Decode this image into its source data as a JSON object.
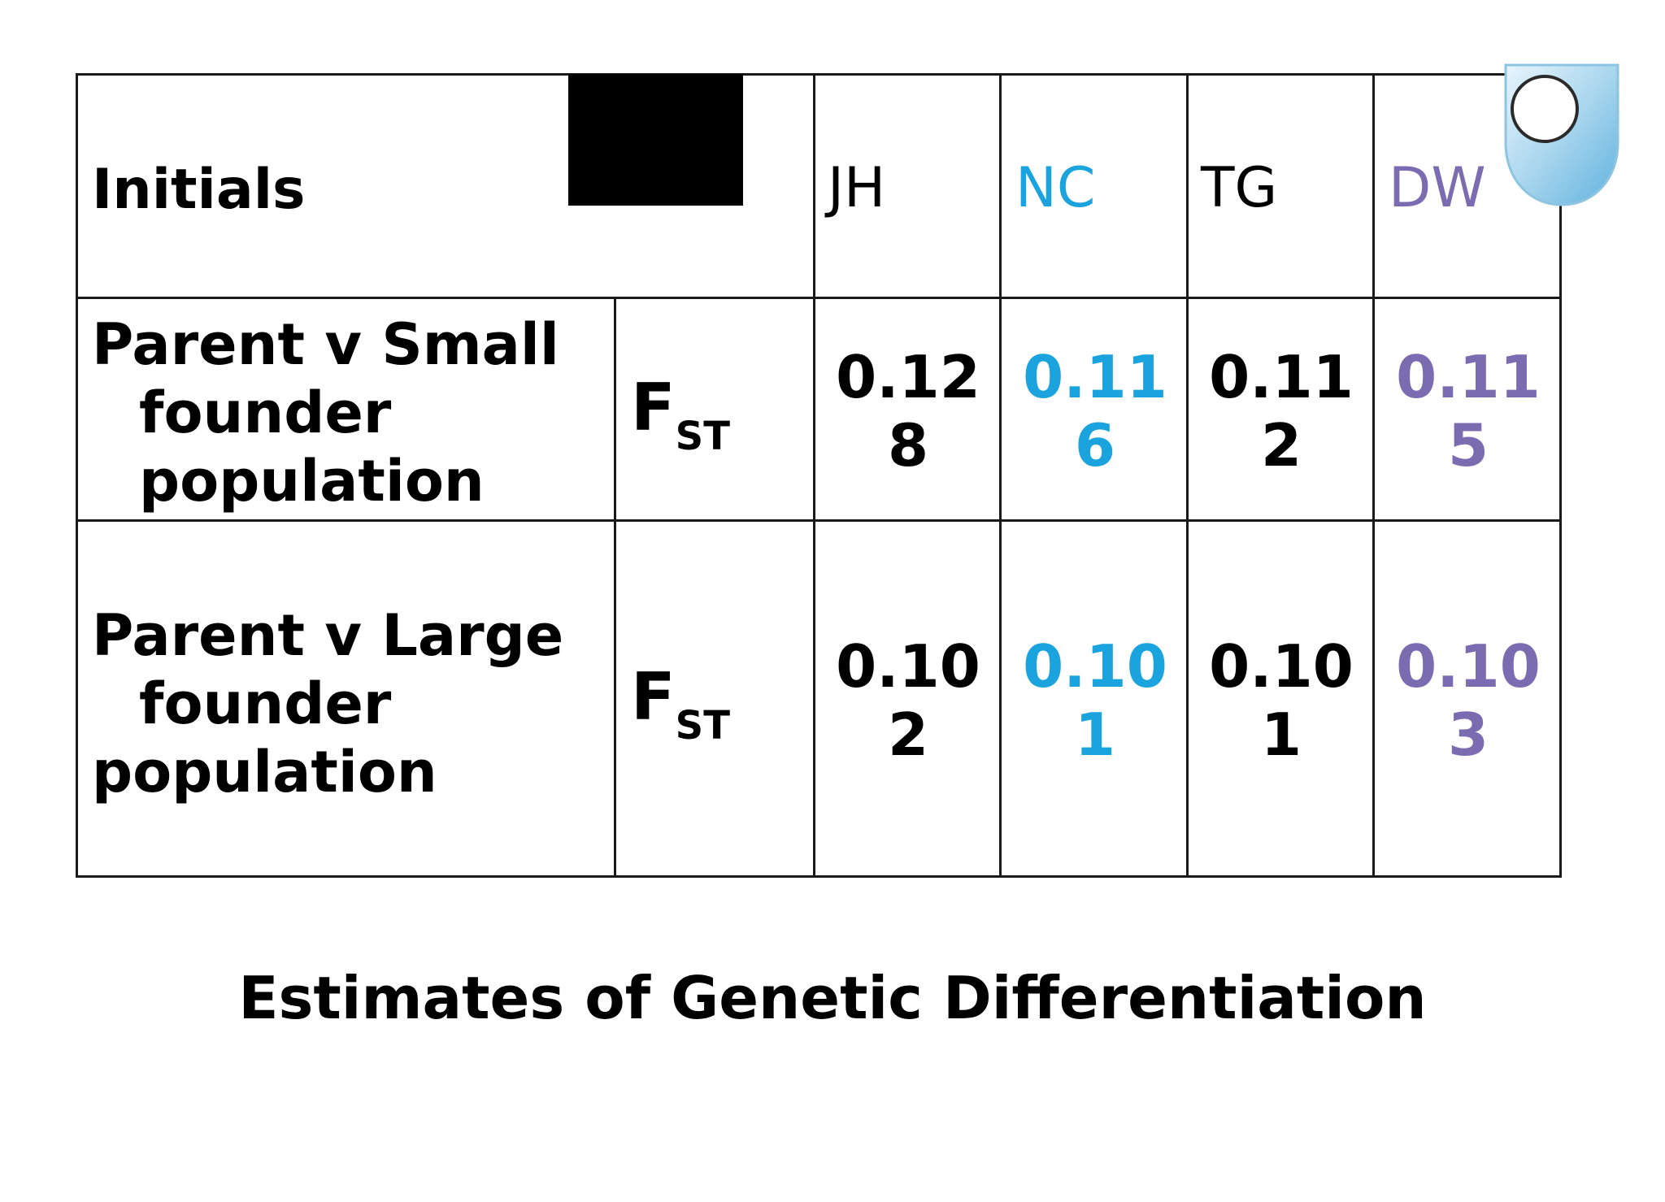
{
  "table": {
    "header": {
      "label": "Initials",
      "initials": [
        {
          "text": "JH",
          "color": "#000000"
        },
        {
          "text": "NC",
          "color": "#1aa3dd"
        },
        {
          "text": "TG",
          "color": "#000000"
        },
        {
          "text": "DW",
          "color": "#7b6bb0"
        }
      ]
    },
    "rows": [
      {
        "label_lines": [
          "Parent v Small",
          "founder",
          "population"
        ],
        "stat": "F",
        "stat_sub": "ST",
        "values": [
          {
            "line1": "0.12",
            "line2": "8"
          },
          {
            "line1": "0.11",
            "line2": "6"
          },
          {
            "line1": "0.11",
            "line2": "2"
          },
          {
            "line1": "0.11",
            "line2": "5"
          }
        ]
      },
      {
        "label_lines": [
          "Parent v Large",
          "founder",
          "population"
        ],
        "stat": "F",
        "stat_sub": "ST",
        "values": [
          {
            "line1": "0.10",
            "line2": "2"
          },
          {
            "line1": "0.10",
            "line2": "1"
          },
          {
            "line1": "0.10",
            "line2": "1"
          },
          {
            "line1": "0.10",
            "line2": "3"
          }
        ]
      }
    ]
  },
  "caption": "Estimates of Genetic Differentiation",
  "colors": {
    "black": "#000000",
    "nc_blue": "#1aa3dd",
    "dw_purple": "#7b6bb0",
    "logo_blue": "#a9d6ee"
  }
}
